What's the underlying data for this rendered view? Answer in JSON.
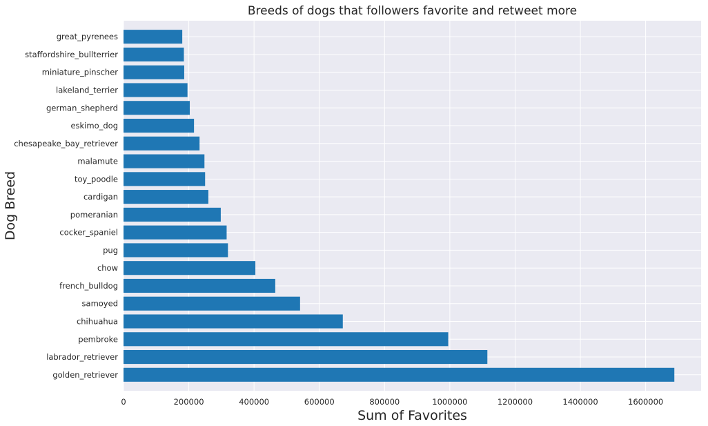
{
  "chart_data": {
    "type": "bar",
    "orientation": "horizontal",
    "title": "Breeds of dogs that followers favorite and retweet more",
    "xlabel": "Sum of Favorites",
    "ylabel": "Dog Breed",
    "xlim": [
      0,
      1770000
    ],
    "xticks": [
      0,
      200000,
      400000,
      600000,
      800000,
      1000000,
      1200000,
      1400000,
      1600000
    ],
    "xtick_labels": [
      "0",
      "200000",
      "400000",
      "600000",
      "800000",
      "1000000",
      "1200000",
      "1400000",
      "1600000"
    ],
    "grid": true,
    "bar_color": "#1f77b4",
    "background_color": "#eaeaf2",
    "categories": [
      "golden_retriever",
      "labrador_retriever",
      "pembroke",
      "chihuahua",
      "samoyed",
      "french_bulldog",
      "chow",
      "pug",
      "cocker_spaniel",
      "pomeranian",
      "cardigan",
      "toy_poodle",
      "malamute",
      "chesapeake_bay_retriever",
      "eskimo_dog",
      "german_shepherd",
      "lakeland_terrier",
      "miniature_pinscher",
      "staffordshire_bullterrier",
      "great_pyrenees"
    ],
    "values": [
      1688000,
      1115000,
      995000,
      672000,
      541000,
      465000,
      404000,
      320000,
      316000,
      298000,
      260000,
      250000,
      248000,
      233000,
      216000,
      203000,
      196000,
      186000,
      185000,
      180000
    ]
  }
}
